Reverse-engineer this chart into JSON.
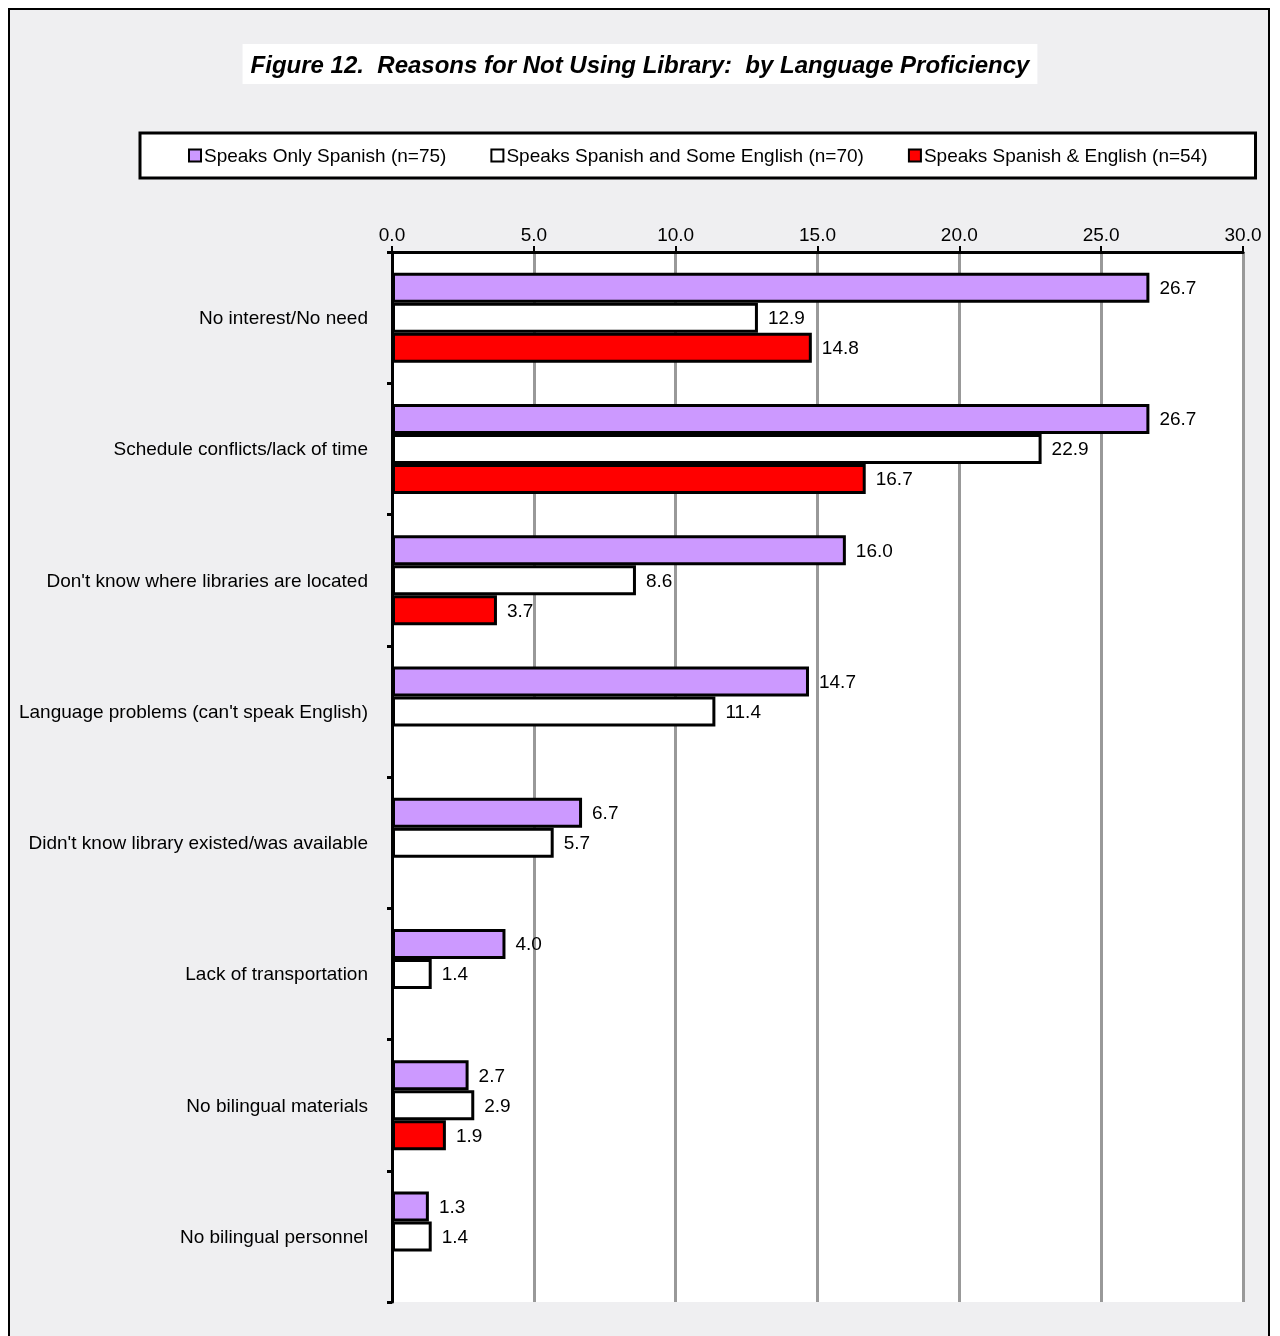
{
  "chart_data": {
    "type": "bar",
    "orientation": "horizontal",
    "title": "Figure 12.  Reasons for Not Using Library:  by Language Proficiency",
    "categories": [
      "No interest/No need",
      "Schedule conflicts/lack of time",
      "Don't know where libraries are located",
      "Language problems (can't speak English)",
      "Didn't know library existed/was available",
      "Lack of transportation",
      "No bilingual materials",
      "No bilingual personnel"
    ],
    "series": [
      {
        "name": "Speaks Only Spanish (n=75)",
        "color": "#cc99ff",
        "values": [
          26.7,
          26.7,
          16.0,
          14.7,
          6.7,
          4.0,
          2.7,
          1.3
        ],
        "value_labels": [
          "26.7",
          "26.7",
          "16.0",
          "14.7",
          "6.7",
          "4.0",
          "2.7",
          "1.3"
        ]
      },
      {
        "name": "Speaks Spanish and Some English (n=70)",
        "color": "#ffffff",
        "values": [
          12.9,
          22.9,
          8.6,
          11.4,
          5.7,
          1.4,
          2.9,
          1.4
        ],
        "value_labels": [
          "12.9",
          "22.9",
          "8.6",
          "11.4",
          "5.7",
          "1.4",
          "2.9",
          "1.4"
        ]
      },
      {
        "name": "Speaks Spanish & English (n=54)",
        "color": "#ff0000",
        "values": [
          14.8,
          16.7,
          3.7,
          null,
          null,
          null,
          1.9,
          null
        ],
        "value_labels": [
          "14.8",
          "16.7",
          "3.7",
          null,
          null,
          null,
          "1.9",
          null
        ]
      }
    ],
    "xlim": [
      0,
      30
    ],
    "xticks": [
      {
        "value": 0,
        "label": "0.0"
      },
      {
        "value": 5,
        "label": "5.0"
      },
      {
        "value": 10,
        "label": "10.0"
      },
      {
        "value": 15,
        "label": "15.0"
      },
      {
        "value": 20,
        "label": "20.0"
      },
      {
        "value": 25,
        "label": "25.0"
      },
      {
        "value": 30,
        "label": "30.0"
      }
    ],
    "grid": "x",
    "legend": "top"
  }
}
